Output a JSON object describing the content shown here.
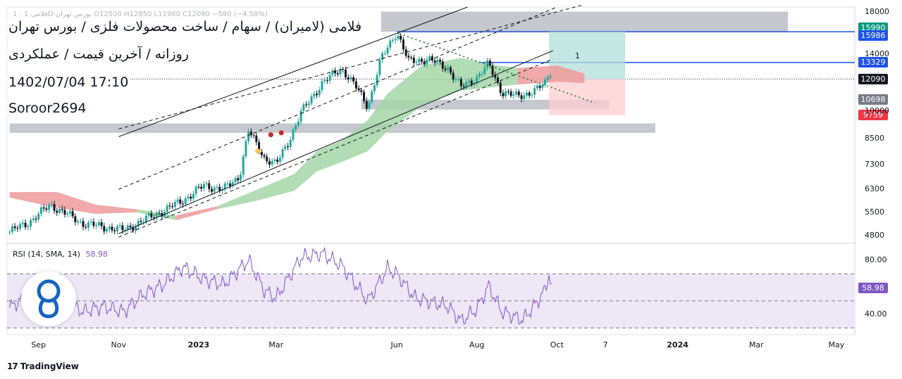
{
  "header": {
    "faint_ohlc": "1 · فلامی·1D·بورس تهران O12500 H12850 L11960 C12090 −580 (−4.58%)",
    "line1": "فلامی (لامیران) / سهام / ساخت محصولات فلزی / بورس تهران",
    "line2": "روزانه / آخرین قیمت / عملکردی",
    "line3": "1402/07/04 17:10",
    "line4": "Soroor2694"
  },
  "box_label": "1",
  "rsi_legend": {
    "name": "RSI (14, SMA, 14)",
    "value": "58.98"
  },
  "rsi_tag": "58.98",
  "branding": {
    "text": "TradingView",
    "mark": "17",
    "logo_icon": "tradingview-logo-icon",
    "watermark_icon": "author-logo-icon"
  },
  "colors": {
    "bull": "#26a69a",
    "bear": "#131722",
    "cloud_bull": "#a5d6a7",
    "cloud_bear": "#ef9a9a",
    "channel": "#131722",
    "rsi": "#7e57c2",
    "rsi_band": "#ede7f6",
    "zone": "#b2b5be",
    "level_line": "#1e53e5",
    "target_box": "#b2dfdb",
    "stop_box": "#ffcdd2"
  },
  "chart_data": {
    "type": "candlestick",
    "symbol_text": "فلامی (لامیران)",
    "x_tick_labels": [
      "Sep",
      "Nov",
      "2023",
      "Mar",
      "Jun",
      "Aug",
      "Oct",
      "7",
      "2024",
      "Mar",
      "May"
    ],
    "y_tick_labels": [
      "18000",
      "14000",
      "10000",
      "8500",
      "7300",
      "6300",
      "5500",
      "4800"
    ],
    "y_scale": "log",
    "ylim": [
      4600,
      18500
    ],
    "price_tags": [
      {
        "value": "15990",
        "color": "#089981"
      },
      {
        "value": "15986",
        "color": "#1e53e5"
      },
      {
        "value": "13329",
        "color": "#1e53e5"
      },
      {
        "value": "12090",
        "color": "#131722"
      },
      {
        "value": "10698",
        "color": "#787b86"
      },
      {
        "value": "9759",
        "color": "#f23645"
      }
    ],
    "levels": [
      {
        "name": "resistance-zone",
        "from": 15990,
        "to": 18000,
        "start": "2023-05-20",
        "end": "2024-03-25"
      },
      {
        "name": "support-zone-1",
        "from": 10100,
        "to": 10698,
        "start": "2023-05-05",
        "end": "2023-11-10"
      },
      {
        "name": "support-zone-2",
        "from": 8800,
        "to": 9300,
        "start": "2022-08-10",
        "end": "2023-12-15"
      },
      {
        "name": "line-15986",
        "value": 15986,
        "start": "2023-06-01",
        "end": "2024-05-20"
      },
      {
        "name": "line-13329",
        "value": 13329,
        "start": "2023-08-01",
        "end": "2024-05-20"
      },
      {
        "name": "last-price",
        "value": 12090,
        "start": "2022-08-10",
        "end": "2024-05-20"
      }
    ],
    "position_boxes": [
      {
        "name": "target",
        "from": 12090,
        "to": 15990,
        "start": "2023-09-25",
        "end": "2023-11-22"
      },
      {
        "name": "stop",
        "from": 9759,
        "to": 12090,
        "start": "2023-09-25",
        "end": "2023-11-22"
      }
    ],
    "channel_lines": [
      {
        "style": "solid",
        "p1": [
          "2022-11-01",
          8600
        ],
        "p2": [
          "2023-07-25",
          18500
        ]
      },
      {
        "style": "dashed",
        "p1": [
          "2022-11-01",
          9000
        ],
        "p2": [
          "2023-10-20",
          18700
        ]
      },
      {
        "style": "dashed",
        "p1": [
          "2022-11-01",
          6300
        ],
        "p2": [
          "2023-10-01",
          18500
        ]
      },
      {
        "style": "solid",
        "p1": [
          "2022-11-01",
          4850
        ],
        "p2": [
          "2023-09-28",
          14300
        ]
      },
      {
        "style": "dashed",
        "p1": [
          "2022-11-01",
          4750
        ],
        "p2": [
          "2023-09-28",
          13600
        ]
      }
    ],
    "dotted_trend": {
      "p1": [
        "2023-06-03",
        15800
      ],
      "p2": [
        "2023-10-30",
        10500
      ]
    },
    "signal_dots": [
      {
        "date": "2023-02-15",
        "price": 7900,
        "color": "#f9c74f"
      },
      {
        "date": "2023-02-25",
        "price": 8700,
        "color": "#c62828"
      },
      {
        "date": "2023-03-05",
        "price": 8800,
        "color": "#c62828"
      }
    ],
    "price_path": [
      [
        "2022-08-10",
        4900
      ],
      [
        "2022-08-25",
        5200
      ],
      [
        "2022-09-10",
        5750
      ],
      [
        "2022-09-20",
        5500
      ],
      [
        "2022-10-05",
        5150
      ],
      [
        "2022-10-20",
        5050
      ],
      [
        "2022-11-05",
        4950
      ],
      [
        "2022-11-20",
        5250
      ],
      [
        "2022-12-05",
        5550
      ],
      [
        "2022-12-20",
        5900
      ],
      [
        "2023-01-05",
        6450
      ],
      [
        "2023-01-20",
        6300
      ],
      [
        "2023-02-01",
        6800
      ],
      [
        "2023-02-08",
        8900
      ],
      [
        "2023-02-20",
        7600
      ],
      [
        "2023-03-01",
        7300
      ],
      [
        "2023-03-10",
        8300
      ],
      [
        "2023-03-20",
        9900
      ],
      [
        "2023-04-05",
        11800
      ],
      [
        "2023-04-20",
        12900
      ],
      [
        "2023-05-01",
        11500
      ],
      [
        "2023-05-10",
        10300
      ],
      [
        "2023-05-20",
        13600
      ],
      [
        "2023-06-01",
        16000
      ],
      [
        "2023-06-10",
        13400
      ],
      [
        "2023-06-25",
        13600
      ],
      [
        "2023-07-10",
        12900
      ],
      [
        "2023-07-20",
        11500
      ],
      [
        "2023-08-01",
        12200
      ],
      [
        "2023-08-10",
        13200
      ],
      [
        "2023-08-20",
        11200
      ],
      [
        "2023-09-01",
        10900
      ],
      [
        "2023-09-15",
        11300
      ],
      [
        "2023-09-22",
        11800
      ],
      [
        "2023-09-26",
        12670
      ],
      [
        "2023-09-27",
        12090
      ]
    ],
    "cloud": [
      [
        "2022-08-10",
        6200,
        6000,
        "bear"
      ],
      [
        "2022-09-15",
        6200,
        5650,
        "bear"
      ],
      [
        "2022-10-15",
        5750,
        5450,
        "bear"
      ],
      [
        "2022-11-15",
        5600,
        5500,
        "bull"
      ],
      [
        "2022-12-15",
        5400,
        5250,
        "bear"
      ],
      [
        "2023-01-15",
        5700,
        5600,
        "bull"
      ],
      [
        "2023-02-15",
        6300,
        5900,
        "bull"
      ],
      [
        "2023-03-15",
        6900,
        6250,
        "bull"
      ],
      [
        "2023-04-01",
        7900,
        7000,
        "bull"
      ],
      [
        "2023-04-20",
        8400,
        7400,
        "bull"
      ],
      [
        "2023-05-10",
        9500,
        7900,
        "bull"
      ],
      [
        "2023-05-25",
        11100,
        8900,
        "bull"
      ],
      [
        "2023-06-20",
        13100,
        10300,
        "bull"
      ],
      [
        "2023-07-20",
        13700,
        11300,
        "bull"
      ],
      [
        "2023-08-10",
        13200,
        11500,
        "bull"
      ],
      [
        "2023-09-01",
        12900,
        11700,
        "bear"
      ],
      [
        "2023-10-01",
        13100,
        11900,
        "bear"
      ],
      [
        "2023-10-22",
        12500,
        11800,
        "bear"
      ]
    ],
    "rsi": {
      "name": "RSI (14, SMA, 14)",
      "levels": [
        70,
        50,
        30
      ],
      "axis_labels": [
        "80.00",
        "40.00"
      ],
      "ylim": [
        25,
        92
      ],
      "values": [
        [
          "2022-08-10",
          45
        ],
        [
          "2022-08-25",
          55
        ],
        [
          "2022-09-10",
          68
        ],
        [
          "2022-09-20",
          50
        ],
        [
          "2022-10-05",
          42
        ],
        [
          "2022-10-20",
          46
        ],
        [
          "2022-11-05",
          42
        ],
        [
          "2022-11-20",
          55
        ],
        [
          "2022-12-05",
          62
        ],
        [
          "2022-12-20",
          75
        ],
        [
          "2023-01-05",
          66
        ],
        [
          "2023-01-20",
          62
        ],
        [
          "2023-02-08",
          80
        ],
        [
          "2023-02-20",
          58
        ],
        [
          "2023-03-01",
          52
        ],
        [
          "2023-03-20",
          82
        ],
        [
          "2023-04-05",
          85
        ],
        [
          "2023-04-20",
          76
        ],
        [
          "2023-05-10",
          50
        ],
        [
          "2023-05-25",
          74
        ],
        [
          "2023-06-01",
          70
        ],
        [
          "2023-06-15",
          52
        ],
        [
          "2023-07-10",
          46
        ],
        [
          "2023-07-20",
          35
        ],
        [
          "2023-08-01",
          44
        ],
        [
          "2023-08-10",
          61
        ],
        [
          "2023-08-20",
          42
        ],
        [
          "2023-09-05",
          36
        ],
        [
          "2023-09-15",
          48
        ],
        [
          "2023-09-22",
          58
        ],
        [
          "2023-09-25",
          70
        ],
        [
          "2023-09-27",
          59
        ]
      ]
    }
  }
}
